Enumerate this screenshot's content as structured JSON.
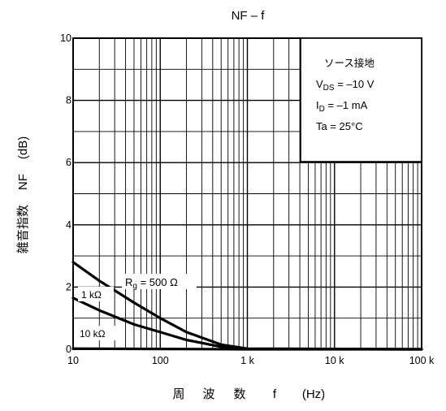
{
  "chart_data": {
    "type": "line",
    "title": "NF – f",
    "xlabel": {
      "chars": [
        "周",
        "波",
        "数"
      ],
      "var": "f",
      "unit": "(Hz)"
    },
    "ylabel": {
      "chars": [
        "雑",
        "音",
        "指",
        "数"
      ],
      "var": "NF",
      "unit": "(dB)"
    },
    "x_scale": "log",
    "xlim": [
      10,
      100000
    ],
    "ylim": [
      0,
      10
    ],
    "x_ticks": [
      {
        "value": 10,
        "label": "10"
      },
      {
        "value": 100,
        "label": "100"
      },
      {
        "value": 1000,
        "label": "1 k"
      },
      {
        "value": 10000,
        "label": "10 k"
      },
      {
        "value": 100000,
        "label": "100 k"
      }
    ],
    "y_ticks": [
      {
        "value": 0,
        "label": "0"
      },
      {
        "value": 2,
        "label": "2"
      },
      {
        "value": 4,
        "label": "4"
      },
      {
        "value": 6,
        "label": "6"
      },
      {
        "value": 8,
        "label": "8"
      },
      {
        "value": 10,
        "label": "10"
      }
    ],
    "grid": true,
    "conditions": {
      "title": "ソース接地",
      "lines": [
        {
          "main": "V",
          "sub": "DS",
          "rest": " = –10 V"
        },
        {
          "main": "I",
          "sub": "D",
          "rest": " = –1 mA"
        },
        {
          "main": "Ta = 25°C",
          "sub": "",
          "rest": ""
        }
      ]
    },
    "series": [
      {
        "label_main": "R",
        "label_sub": "g",
        "label_rest": " = 500 Ω",
        "x": [
          10,
          20,
          50,
          100,
          200,
          500,
          1000,
          100000
        ],
        "y": [
          2.8,
          2.2,
          1.5,
          1.0,
          0.55,
          0.15,
          0.02,
          0
        ]
      },
      {
        "label_main": "1 kΩ",
        "label_sub": "",
        "label_rest": "",
        "x": [
          10,
          20,
          50,
          100,
          200,
          500,
          1000,
          100000
        ],
        "y": [
          1.65,
          1.25,
          0.8,
          0.55,
          0.3,
          0.08,
          0.01,
          0
        ]
      },
      {
        "label_main": "10 kΩ",
        "label_sub": "",
        "label_rest": "",
        "x": [
          10,
          100,
          1000,
          100000
        ],
        "y": [
          0.02,
          0.01,
          0,
          0
        ]
      }
    ]
  }
}
